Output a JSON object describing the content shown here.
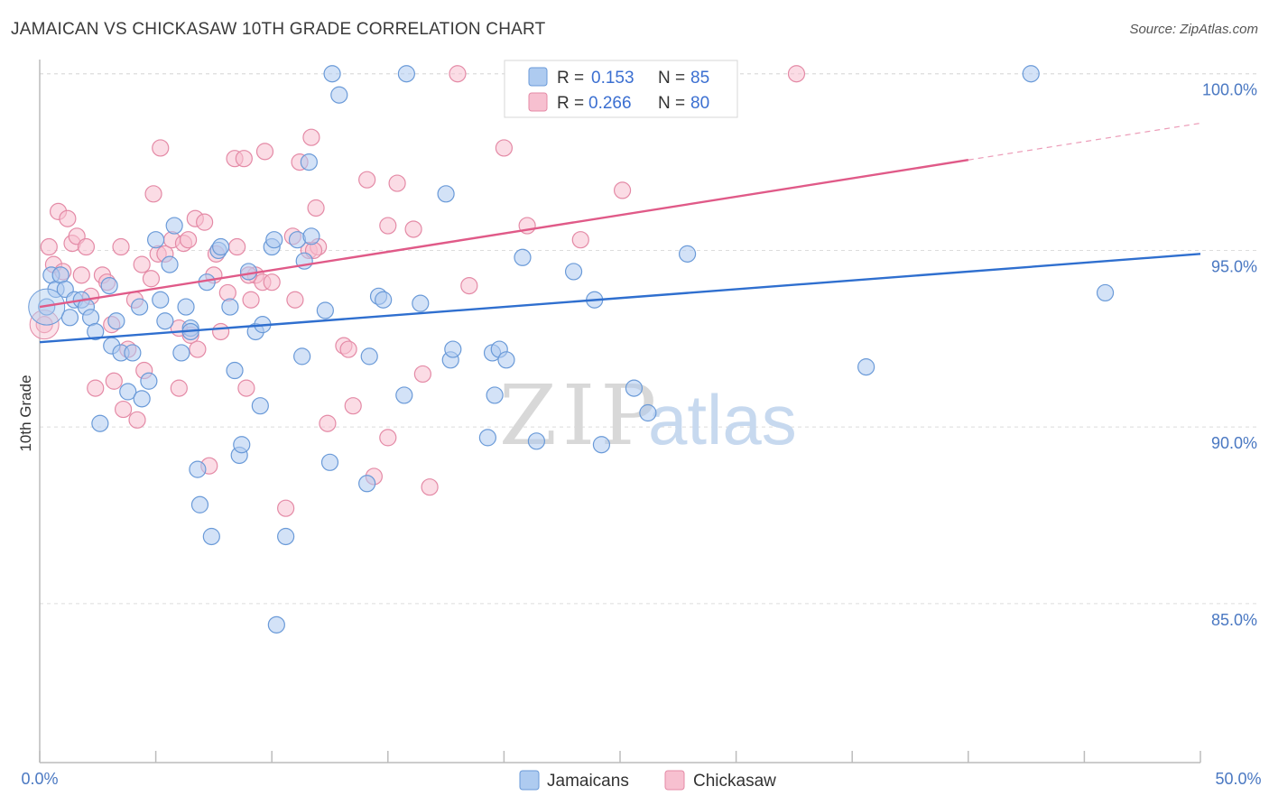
{
  "title": "JAMAICAN VS CHICKASAW 10TH GRADE CORRELATION CHART",
  "source": "Source: ZipAtlas.com",
  "watermark": {
    "zip": "ZIP",
    "atlas": "atlas"
  },
  "colors": {
    "blue_fill": "#aecbf0",
    "blue_stroke": "#6a9ad8",
    "blue_line": "#2f6fcf",
    "pink_fill": "#f7c0d0",
    "pink_stroke": "#e48aa6",
    "pink_line": "#e05a88",
    "grid": "#dcdcdc",
    "axis_text": "#4a78c2"
  },
  "legend": {
    "rows": [
      {
        "r_label": "R =",
        "r_value": "0.153",
        "n_label": "N =",
        "n_value": "85"
      },
      {
        "r_label": "R =",
        "r_value": "0.266",
        "n_label": "N =",
        "n_value": "80"
      }
    ]
  },
  "chart_data": {
    "type": "scatter",
    "title": "JAMAICAN VS CHICKASAW 10TH GRADE CORRELATION CHART",
    "xlabel": "",
    "ylabel": "10th Grade",
    "xlim": [
      0,
      50
    ],
    "ylim": [
      80.5,
      100.3
    ],
    "x_tick_labels": [
      "0.0%",
      "50.0%"
    ],
    "y_ticks": [
      85,
      90,
      95,
      100
    ],
    "y_tick_labels": [
      "85.0%",
      "90.0%",
      "95.0%",
      "100.0%"
    ],
    "grid": true,
    "legend_position": "bottom",
    "series": [
      {
        "name": "Jamaicans",
        "r": 0.153,
        "n": 85,
        "trend": {
          "x": [
            0,
            50
          ],
          "y": [
            92.4,
            94.9
          ],
          "dashed_from": null
        },
        "points": [
          [
            0.3,
            93.4
          ],
          [
            0.5,
            94.3
          ],
          [
            0.7,
            93.9
          ],
          [
            0.9,
            94.3
          ],
          [
            1.1,
            93.9
          ],
          [
            1.3,
            93.1
          ],
          [
            1.5,
            93.6
          ],
          [
            1.8,
            93.6
          ],
          [
            2.0,
            93.4
          ],
          [
            2.2,
            93.1
          ],
          [
            2.4,
            92.7
          ],
          [
            2.6,
            90.1
          ],
          [
            3.0,
            94.0
          ],
          [
            3.1,
            92.3
          ],
          [
            3.3,
            93.0
          ],
          [
            3.5,
            92.1
          ],
          [
            3.8,
            91.0
          ],
          [
            4.0,
            92.1
          ],
          [
            4.3,
            93.4
          ],
          [
            4.4,
            90.8
          ],
          [
            4.7,
            91.3
          ],
          [
            5.0,
            95.3
          ],
          [
            5.2,
            93.6
          ],
          [
            5.4,
            93.0
          ],
          [
            5.6,
            94.6
          ],
          [
            5.8,
            95.7
          ],
          [
            6.1,
            92.1
          ],
          [
            6.3,
            93.4
          ],
          [
            6.5,
            92.8
          ],
          [
            6.8,
            88.8
          ],
          [
            6.9,
            87.8
          ],
          [
            7.2,
            94.1
          ],
          [
            7.4,
            86.9
          ],
          [
            7.7,
            95.0
          ],
          [
            7.8,
            95.1
          ],
          [
            8.2,
            93.4
          ],
          [
            8.4,
            91.6
          ],
          [
            8.6,
            89.2
          ],
          [
            8.7,
            89.5
          ],
          [
            9.0,
            94.4
          ],
          [
            9.3,
            92.7
          ],
          [
            9.5,
            90.6
          ],
          [
            9.6,
            92.9
          ],
          [
            10.0,
            95.1
          ],
          [
            10.1,
            95.3
          ],
          [
            10.6,
            86.9
          ],
          [
            11.1,
            95.3
          ],
          [
            11.3,
            92.0
          ],
          [
            11.4,
            94.7
          ],
          [
            11.6,
            97.5
          ],
          [
            11.7,
            95.4
          ],
          [
            12.3,
            93.3
          ],
          [
            12.5,
            89.0
          ],
          [
            12.6,
            100.0
          ],
          [
            12.9,
            99.4
          ],
          [
            14.1,
            88.4
          ],
          [
            14.2,
            92.0
          ],
          [
            14.6,
            93.7
          ],
          [
            14.8,
            93.6
          ],
          [
            15.7,
            90.9
          ],
          [
            15.8,
            100.0
          ],
          [
            16.4,
            93.5
          ],
          [
            17.5,
            96.6
          ],
          [
            17.7,
            91.9
          ],
          [
            17.8,
            92.2
          ],
          [
            19.3,
            89.7
          ],
          [
            19.5,
            92.1
          ],
          [
            19.6,
            90.9
          ],
          [
            19.8,
            92.2
          ],
          [
            20.1,
            91.9
          ],
          [
            20.8,
            94.8
          ],
          [
            21.4,
            89.6
          ],
          [
            23.0,
            94.4
          ],
          [
            23.9,
            93.6
          ],
          [
            24.2,
            89.5
          ],
          [
            25.6,
            91.1
          ],
          [
            26.2,
            90.4
          ],
          [
            26.3,
            100.0
          ],
          [
            27.9,
            94.9
          ],
          [
            28.1,
            100.0
          ],
          [
            35.6,
            91.7
          ],
          [
            42.7,
            100.0
          ],
          [
            45.9,
            93.8
          ],
          [
            6.5,
            92.7
          ],
          [
            10.2,
            84.4
          ]
        ]
      },
      {
        "name": "Chickasaw",
        "r": 0.266,
        "n": 80,
        "trend": {
          "x": [
            0,
            50
          ],
          "y": [
            93.4,
            98.6
          ],
          "dashed_from": 40
        },
        "points": [
          [
            0.2,
            92.9
          ],
          [
            0.4,
            95.1
          ],
          [
            0.6,
            94.6
          ],
          [
            0.8,
            96.1
          ],
          [
            1.0,
            94.4
          ],
          [
            1.2,
            95.9
          ],
          [
            1.4,
            95.2
          ],
          [
            1.6,
            95.4
          ],
          [
            1.8,
            94.3
          ],
          [
            2.0,
            95.1
          ],
          [
            2.2,
            93.7
          ],
          [
            2.4,
            91.1
          ],
          [
            2.7,
            94.3
          ],
          [
            2.9,
            94.1
          ],
          [
            3.1,
            92.9
          ],
          [
            3.2,
            91.3
          ],
          [
            3.5,
            95.1
          ],
          [
            3.6,
            90.5
          ],
          [
            3.8,
            92.2
          ],
          [
            4.1,
            93.6
          ],
          [
            4.2,
            90.2
          ],
          [
            4.4,
            94.6
          ],
          [
            4.5,
            91.6
          ],
          [
            4.8,
            94.2
          ],
          [
            4.9,
            96.6
          ],
          [
            5.1,
            94.9
          ],
          [
            5.2,
            97.9
          ],
          [
            5.4,
            94.9
          ],
          [
            5.7,
            95.3
          ],
          [
            6.0,
            91.1
          ],
          [
            6.2,
            95.2
          ],
          [
            6.4,
            95.3
          ],
          [
            6.5,
            92.6
          ],
          [
            6.7,
            95.9
          ],
          [
            6.8,
            92.2
          ],
          [
            7.1,
            95.8
          ],
          [
            7.3,
            88.9
          ],
          [
            7.5,
            94.3
          ],
          [
            7.6,
            94.9
          ],
          [
            7.8,
            92.7
          ],
          [
            8.1,
            93.8
          ],
          [
            8.4,
            97.6
          ],
          [
            8.5,
            95.1
          ],
          [
            8.8,
            97.6
          ],
          [
            8.9,
            91.1
          ],
          [
            9.1,
            93.6
          ],
          [
            9.3,
            94.3
          ],
          [
            9.6,
            94.1
          ],
          [
            9.7,
            97.8
          ],
          [
            10.0,
            94.1
          ],
          [
            10.6,
            87.7
          ],
          [
            10.9,
            95.4
          ],
          [
            11.0,
            93.6
          ],
          [
            11.2,
            97.5
          ],
          [
            11.6,
            95.0
          ],
          [
            11.7,
            98.2
          ],
          [
            11.9,
            96.2
          ],
          [
            12.0,
            95.1
          ],
          [
            12.4,
            90.1
          ],
          [
            13.1,
            92.3
          ],
          [
            13.3,
            92.2
          ],
          [
            13.5,
            90.6
          ],
          [
            14.1,
            97.0
          ],
          [
            14.4,
            88.6
          ],
          [
            15.0,
            89.7
          ],
          [
            15.4,
            96.9
          ],
          [
            16.1,
            95.6
          ],
          [
            16.5,
            91.5
          ],
          [
            16.8,
            88.3
          ],
          [
            18.0,
            100.0
          ],
          [
            18.5,
            94.0
          ],
          [
            20.0,
            97.9
          ],
          [
            21.0,
            95.7
          ],
          [
            23.3,
            95.3
          ],
          [
            25.1,
            96.7
          ],
          [
            32.6,
            100.0
          ],
          [
            11.8,
            95.0
          ],
          [
            9.0,
            94.3
          ],
          [
            15.0,
            95.7
          ],
          [
            6.0,
            92.8
          ]
        ]
      }
    ]
  },
  "bottom_legend": [
    {
      "label": "Jamaicans"
    },
    {
      "label": "Chickasaw"
    }
  ]
}
